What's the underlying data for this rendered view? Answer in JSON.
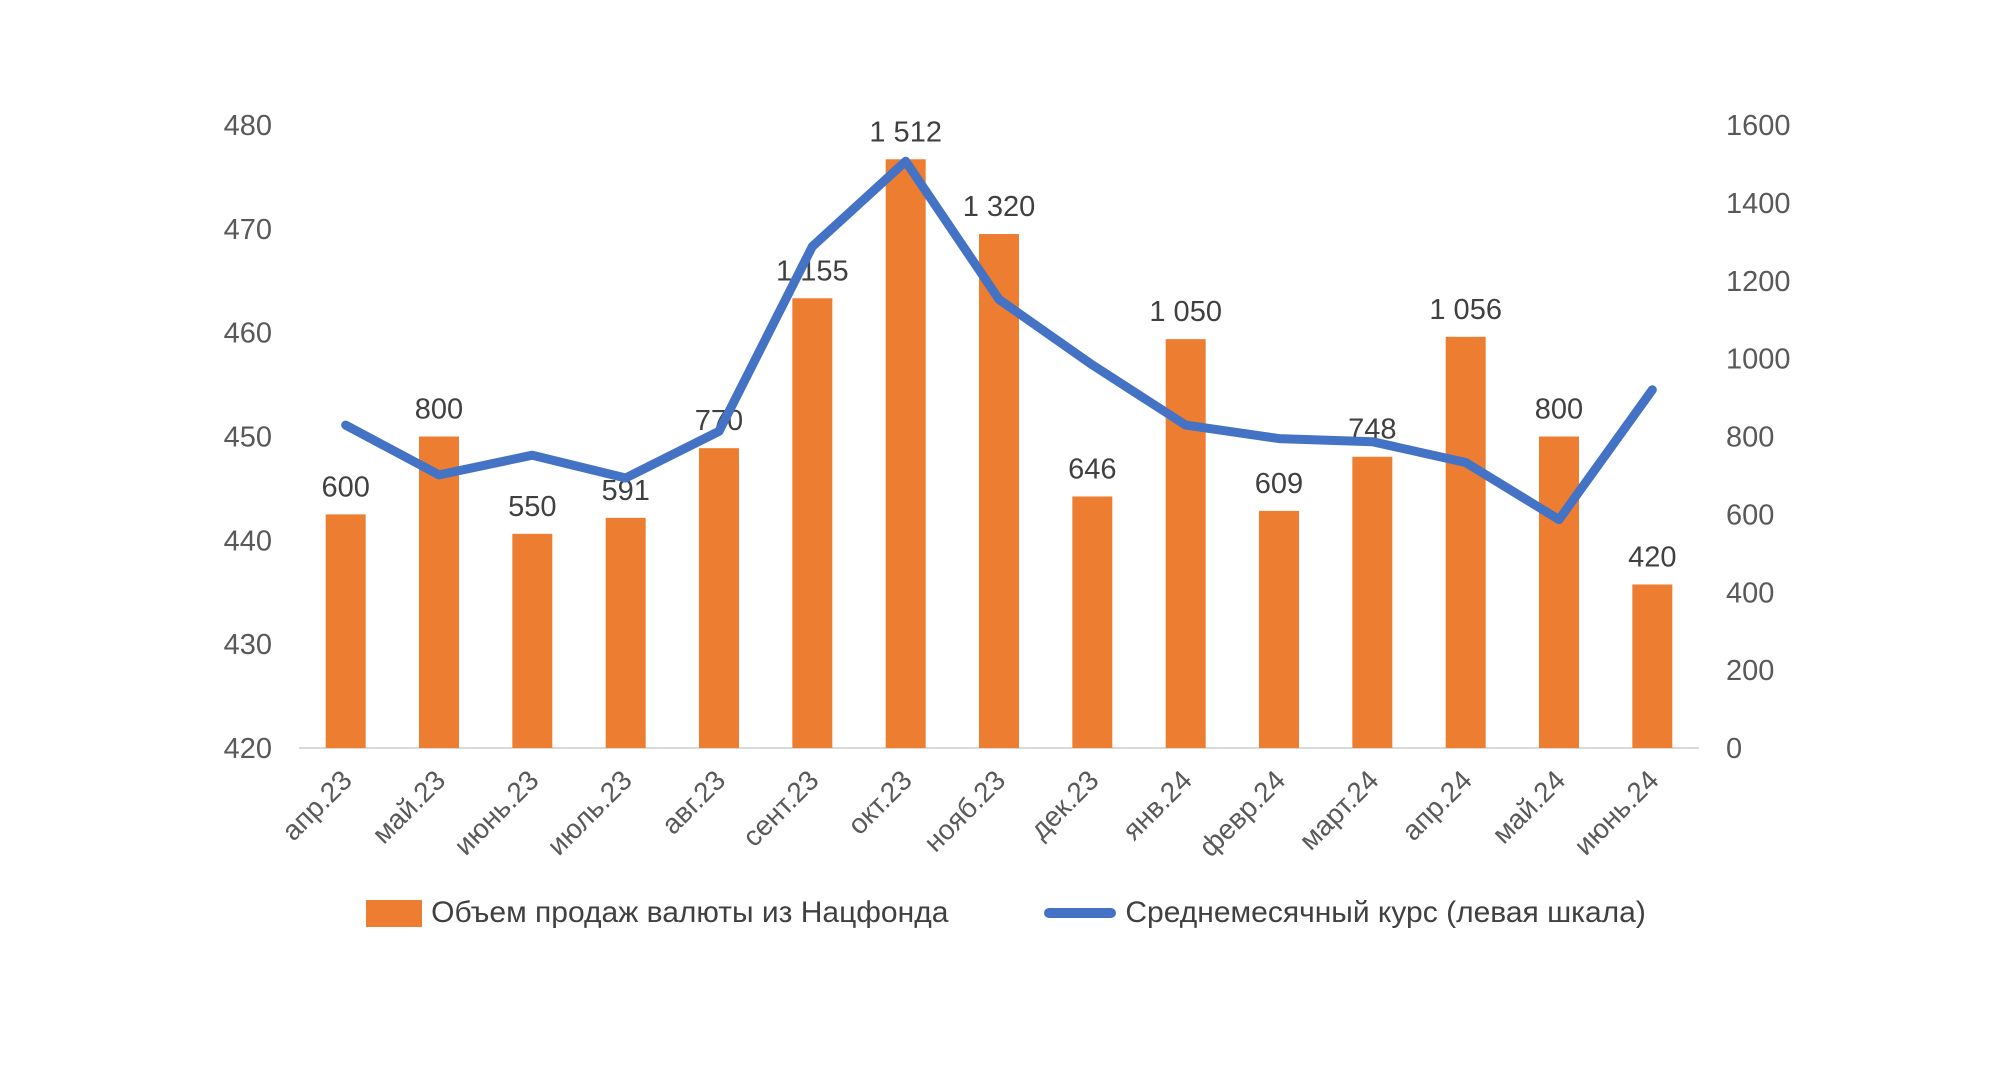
{
  "chart_data": {
    "type": "bar",
    "subtype": "combo-bar-line-dual-axis",
    "title": "",
    "xlabel": "",
    "ylabel": "",
    "grid": false,
    "legend_position": "bottom",
    "categories": [
      "апр.23",
      "май.23",
      "июнь.23",
      "июль.23",
      "авг.23",
      "сент.23",
      "окт.23",
      "нояб.23",
      "дек.23",
      "янв.24",
      "февр.24",
      "март.24",
      "апр.24",
      "май.24",
      "июнь.24"
    ],
    "series": [
      {
        "name": "Объем продаж валюты из Нацфонда",
        "type": "bar",
        "axis": "right",
        "color": "#ED7D31",
        "values": [
          600,
          800,
          550,
          591,
          770,
          1155,
          1512,
          1320,
          646,
          1050,
          609,
          748,
          1056,
          800,
          420
        ],
        "value_labels": [
          "600",
          "800",
          "550",
          "591",
          "770",
          "1 155",
          "1 512",
          "1 320",
          "646",
          "1 050",
          "609",
          "748",
          "1 056",
          "800",
          "420"
        ]
      },
      {
        "name": "Среднемесячный курс (левая шкала)",
        "type": "line",
        "axis": "left",
        "color": "#4472C4",
        "values": [
          451.1,
          446.3,
          448.2,
          446.0,
          450.5,
          468.3,
          476.5,
          463.2,
          456.9,
          451.1,
          449.8,
          449.5,
          447.5,
          442.0,
          454.5
        ]
      }
    ],
    "left_axis": {
      "min": 420,
      "max": 480,
      "step": 10,
      "ticks": [
        "420",
        "430",
        "440",
        "450",
        "460",
        "470",
        "480"
      ]
    },
    "right_axis": {
      "min": 0,
      "max": 1600,
      "step": 200,
      "ticks": [
        "0",
        "200",
        "400",
        "600",
        "800",
        "1000",
        "1200",
        "1400",
        "1600"
      ]
    },
    "colors": {
      "bar": "#ED7D31",
      "line": "#4472C4",
      "axis_text": "#595959",
      "data_label_text": "#404040",
      "baseline": "#D9D9D9"
    }
  },
  "legend": {
    "items": [
      {
        "label": "Объем продаж валюты из Нацфонда",
        "swatch": "bar",
        "color": "#ED7D31"
      },
      {
        "label": "Среднемесячный курс (левая шкала)",
        "swatch": "line",
        "color": "#4472C4"
      }
    ]
  }
}
